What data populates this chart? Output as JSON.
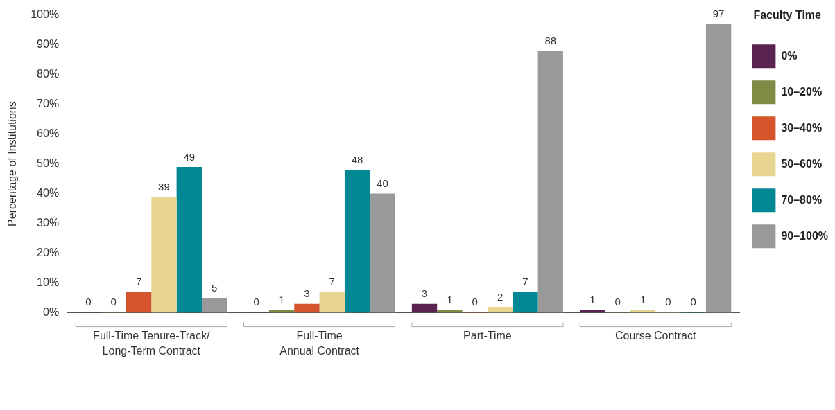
{
  "chart_data": {
    "type": "bar",
    "ylabel": "Percentage of Institutions",
    "legend_title": "Faculty Time",
    "legend": "right",
    "data_labels": true,
    "grid": false,
    "categories": [
      "Full-Time Tenure-Track/\nLong-Term Contract",
      "Full-Time\nAnnual Contract",
      "Part-Time",
      "Course Contract"
    ],
    "ylim": [
      0,
      100
    ],
    "yticks": [
      {
        "value": 0,
        "label": "0%"
      },
      {
        "value": 10,
        "label": "10%"
      },
      {
        "value": 20,
        "label": "20%"
      },
      {
        "value": 30,
        "label": "30%"
      },
      {
        "value": 40,
        "label": "40%"
      },
      {
        "value": 50,
        "label": "50%"
      },
      {
        "value": 60,
        "label": "60%"
      },
      {
        "value": 70,
        "label": "70%"
      },
      {
        "value": 80,
        "label": "80%"
      },
      {
        "value": 90,
        "label": "90%"
      },
      {
        "value": 100,
        "label": "100%"
      }
    ],
    "series": [
      {
        "name": "0%",
        "color": "#5b2450",
        "values": [
          0,
          0,
          3,
          1
        ]
      },
      {
        "name": "10–20%",
        "color": "#7f8a45",
        "values": [
          0,
          1,
          1,
          0
        ]
      },
      {
        "name": "30–40%",
        "color": "#d4552b",
        "colors": [
          "#d4552b",
          "#d4552b",
          "#d4552b",
          "#e8d690"
        ],
        "values": [
          7,
          3,
          0,
          1
        ]
      },
      {
        "name": "50–60%",
        "color": "#e8d690",
        "values": [
          39,
          7,
          2,
          0
        ]
      },
      {
        "name": "70–80%",
        "color": "#008995",
        "values": [
          49,
          48,
          7,
          0
        ]
      },
      {
        "name": "90–100%",
        "color": "#999999",
        "values": [
          5,
          40,
          88,
          97
        ]
      }
    ]
  }
}
